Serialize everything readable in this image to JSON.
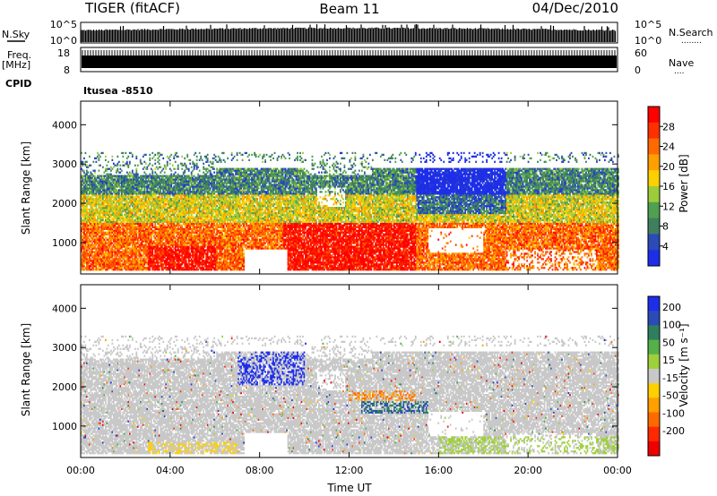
{
  "header": {
    "radar": "TIGER (fitACF)",
    "beam": "Beam 11",
    "date": "04/Dec/2010"
  },
  "strip": {
    "nsky_label": "N.Sky",
    "nsearch_label": "N.Search",
    "nsearch_dots": "........",
    "nsky_ticks": [
      "10^5",
      "10^0"
    ],
    "freq_label": "Freq.",
    "freq_unit": "[MHz]",
    "freq_ticks": [
      "18",
      "8"
    ],
    "nave_label": "Nave",
    "nave_dots": "....",
    "nave_ticks": [
      "60",
      "0"
    ],
    "cpid_label": "CPID",
    "cpid_value": "Itusea -8510"
  },
  "colors": {
    "power": [
      "#1e2ee8",
      "#2a4bb8",
      "#3f7f60",
      "#4fa050",
      "#9ccc3a",
      "#ffd000",
      "#ffa000",
      "#ff6a00",
      "#ff3000",
      "#ff0000"
    ],
    "velocity": [
      "#1e2ee8",
      "#2a4bb8",
      "#2f7f5f",
      "#55b04a",
      "#9ed03a",
      "#c8c8c8",
      "#ffd000",
      "#ffa000",
      "#ff6a00",
      "#ff2a00",
      "#ee0000"
    ],
    "grey": "#c8c8c8"
  },
  "chart_data": [
    {
      "type": "heatmap",
      "panel": "power",
      "ylabel": "Slant Range [km]",
      "ylim": [
        200,
        4600
      ],
      "yticks": [
        1000,
        2000,
        3000,
        4000
      ],
      "xlim": [
        0,
        24
      ],
      "xticks": [
        "00:00",
        "04:00",
        "08:00",
        "12:00",
        "16:00",
        "20:00",
        "00:00"
      ],
      "colorbar": {
        "label": "Power [dB]",
        "ticks": [
          "4",
          "8",
          "12",
          "16",
          "20",
          "24",
          "28"
        ],
        "levels": [
          0,
          4,
          8,
          12,
          16,
          20,
          24,
          28,
          32
        ]
      }
    },
    {
      "type": "heatmap",
      "panel": "velocity",
      "ylabel": "Slant Range [km]",
      "ylim": [
        200,
        4600
      ],
      "yticks": [
        1000,
        2000,
        3000,
        4000
      ],
      "xlim": [
        0,
        24
      ],
      "xticks": [
        "00:00",
        "04:00",
        "08:00",
        "12:00",
        "16:00",
        "20:00",
        "00:00"
      ],
      "xlabel": "Time UT",
      "colorbar": {
        "label": "Velocity [m s⁻¹]",
        "ticks": [
          "200",
          "100",
          "50",
          "15",
          "-15",
          "-50",
          "-100",
          "-200"
        ]
      }
    }
  ]
}
